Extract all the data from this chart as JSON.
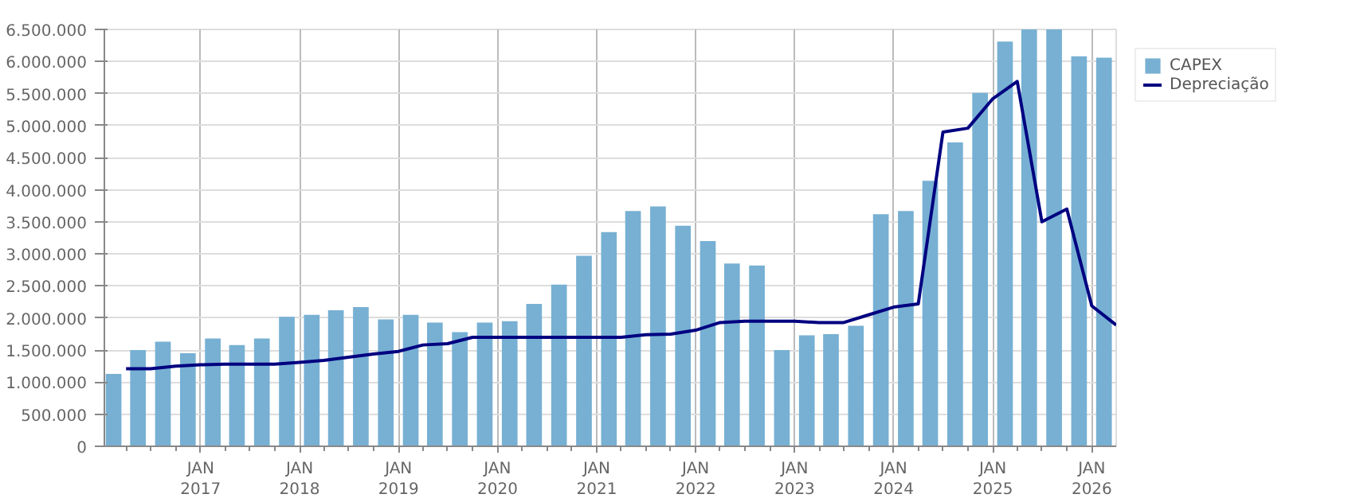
{
  "chart_data": {
    "type": "bar",
    "x": [
      "2016-02-15",
      "2016-05-15",
      "2016-08-15",
      "2016-11-15",
      "2017-02-15",
      "2017-05-15",
      "2017-08-15",
      "2017-11-15",
      "2018-02-15",
      "2018-05-15",
      "2018-08-15",
      "2018-11-15",
      "2019-02-15",
      "2019-05-15",
      "2019-08-15",
      "2019-11-15",
      "2020-02-15",
      "2020-05-15",
      "2020-08-15",
      "2020-11-15",
      "2021-02-15",
      "2021-05-15",
      "2021-08-15",
      "2021-11-15",
      "2022-02-15",
      "2022-05-15",
      "2022-08-15",
      "2022-11-15",
      "2023-02-15",
      "2023-05-15",
      "2023-08-15",
      "2023-11-15",
      "2024-02-15",
      "2024-05-15",
      "2024-08-15",
      "2024-11-15",
      "2025-02-15",
      "2025-05-15",
      "2025-08-15",
      "2025-11-15",
      "2026-02-15"
    ],
    "series": [
      {
        "name": "CAPEX",
        "color": "#77b0d3",
        "values": [
          1130000,
          1500000,
          1630000,
          1450000,
          1680000,
          1580000,
          1680000,
          2020000,
          2050000,
          2120000,
          2170000,
          1980000,
          2050000,
          1930000,
          1780000,
          1930000,
          1950000,
          2220000,
          2520000,
          2970000,
          3340000,
          3670000,
          3740000,
          3440000,
          3200000,
          2850000,
          2820000,
          1500000,
          1730000,
          1750000,
          1880000,
          3620000,
          3670000,
          4140000,
          4740000,
          5510000,
          6310000,
          6500000,
          6500000,
          6080000,
          6060000
        ]
      },
      {
        "name": "Depreciação",
        "type": "line",
        "color": "#000080",
        "x": [
          "2016-04-01",
          "2016-07-01",
          "2016-10-01",
          "2017-01-01",
          "2017-04-01",
          "2017-07-01",
          "2017-10-01",
          "2018-01-01",
          "2018-04-01",
          "2018-07-01",
          "2018-10-01",
          "2019-01-01",
          "2019-04-01",
          "2019-07-01",
          "2019-10-01",
          "2020-01-01",
          "2020-04-01",
          "2020-07-01",
          "2020-10-01",
          "2021-01-01",
          "2021-04-01",
          "2021-07-01",
          "2021-10-01",
          "2022-01-01",
          "2022-04-01",
          "2022-07-01",
          "2022-10-01",
          "2023-01-01",
          "2023-04-01",
          "2023-07-01",
          "2023-10-01",
          "2024-01-01",
          "2024-04-01",
          "2024-07-01",
          "2024-10-01",
          "2025-01-01",
          "2025-04-01",
          "2025-07-01",
          "2025-10-01",
          "2026-01-01",
          "2026-04-01"
        ],
        "values": [
          1210000,
          1210000,
          1250000,
          1270000,
          1280000,
          1280000,
          1280000,
          1310000,
          1340000,
          1390000,
          1440000,
          1480000,
          1580000,
          1600000,
          1700000,
          1700000,
          1700000,
          1700000,
          1700000,
          1700000,
          1700000,
          1740000,
          1750000,
          1810000,
          1930000,
          1950000,
          1950000,
          1950000,
          1930000,
          1930000,
          2050000,
          2170000,
          2220000,
          4900000,
          4960000,
          5420000,
          5690000,
          3500000,
          3700000,
          2190000,
          1890000
        ]
      }
    ],
    "xlim": [
      "2016-01-12",
      "2026-04-01"
    ],
    "xticks": [
      {
        "value": "2016-04-01",
        "label": null
      },
      {
        "value": "2016-07-01",
        "label": null
      },
      {
        "value": "2016-10-01",
        "label": null
      },
      {
        "value": "2017-01-01",
        "label": "JAN\n2017"
      },
      {
        "value": "2017-04-01",
        "label": null
      },
      {
        "value": "2017-07-01",
        "label": null
      },
      {
        "value": "2017-10-01",
        "label": null
      },
      {
        "value": "2018-01-01",
        "label": "JAN\n2018"
      },
      {
        "value": "2018-04-01",
        "label": null
      },
      {
        "value": "2018-07-01",
        "label": null
      },
      {
        "value": "2018-10-01",
        "label": null
      },
      {
        "value": "2019-01-01",
        "label": "JAN\n2019"
      },
      {
        "value": "2019-04-01",
        "label": null
      },
      {
        "value": "2019-07-01",
        "label": null
      },
      {
        "value": "2019-10-01",
        "label": null
      },
      {
        "value": "2020-01-01",
        "label": "JAN\n2020"
      },
      {
        "value": "2020-04-01",
        "label": null
      },
      {
        "value": "2020-07-01",
        "label": null
      },
      {
        "value": "2020-10-01",
        "label": null
      },
      {
        "value": "2021-01-01",
        "label": "JAN\n2021"
      },
      {
        "value": "2021-04-01",
        "label": null
      },
      {
        "value": "2021-07-01",
        "label": null
      },
      {
        "value": "2021-10-01",
        "label": null
      },
      {
        "value": "2022-01-01",
        "label": "JAN\n2022"
      },
      {
        "value": "2022-04-01",
        "label": null
      },
      {
        "value": "2022-07-01",
        "label": null
      },
      {
        "value": "2022-10-01",
        "label": null
      },
      {
        "value": "2023-01-01",
        "label": "JAN\n2023"
      },
      {
        "value": "2023-04-01",
        "label": null
      },
      {
        "value": "2023-07-01",
        "label": null
      },
      {
        "value": "2023-10-01",
        "label": null
      },
      {
        "value": "2024-01-01",
        "label": "JAN\n2024"
      },
      {
        "value": "2024-04-01",
        "label": null
      },
      {
        "value": "2024-07-01",
        "label": null
      },
      {
        "value": "2024-10-01",
        "label": null
      },
      {
        "value": "2025-01-01",
        "label": "JAN\n2025"
      },
      {
        "value": "2025-04-01",
        "label": null
      },
      {
        "value": "2025-07-01",
        "label": null
      },
      {
        "value": "2025-10-01",
        "label": null
      },
      {
        "value": "2026-01-01",
        "label": "JAN\n2026"
      }
    ],
    "ylim": [
      0,
      6500000
    ],
    "yticks": [
      0,
      {
        "value": 500000,
        "label": "500.000"
      },
      {
        "value": 1000000,
        "label": "1.000.000"
      },
      {
        "value": 1500000,
        "label": "1.500.000"
      },
      {
        "value": 2000000,
        "label": "2.000.000"
      },
      {
        "value": 2500000,
        "label": "2.500.000"
      },
      {
        "value": 3000000,
        "label": "3.000.000"
      },
      {
        "value": 3500000,
        "label": "3.500.000"
      },
      {
        "value": 4000000,
        "label": "4.000.000"
      },
      {
        "value": 4500000,
        "label": "4.500.000"
      },
      {
        "value": 5000000,
        "label": "5.000.000"
      },
      {
        "value": 5500000,
        "label": "5.500.000"
      },
      {
        "value": 6000000,
        "label": "6.000.000"
      },
      {
        "value": 6500000,
        "label": "6.500.000"
      }
    ],
    "grid": true,
    "legend": "top right"
  }
}
